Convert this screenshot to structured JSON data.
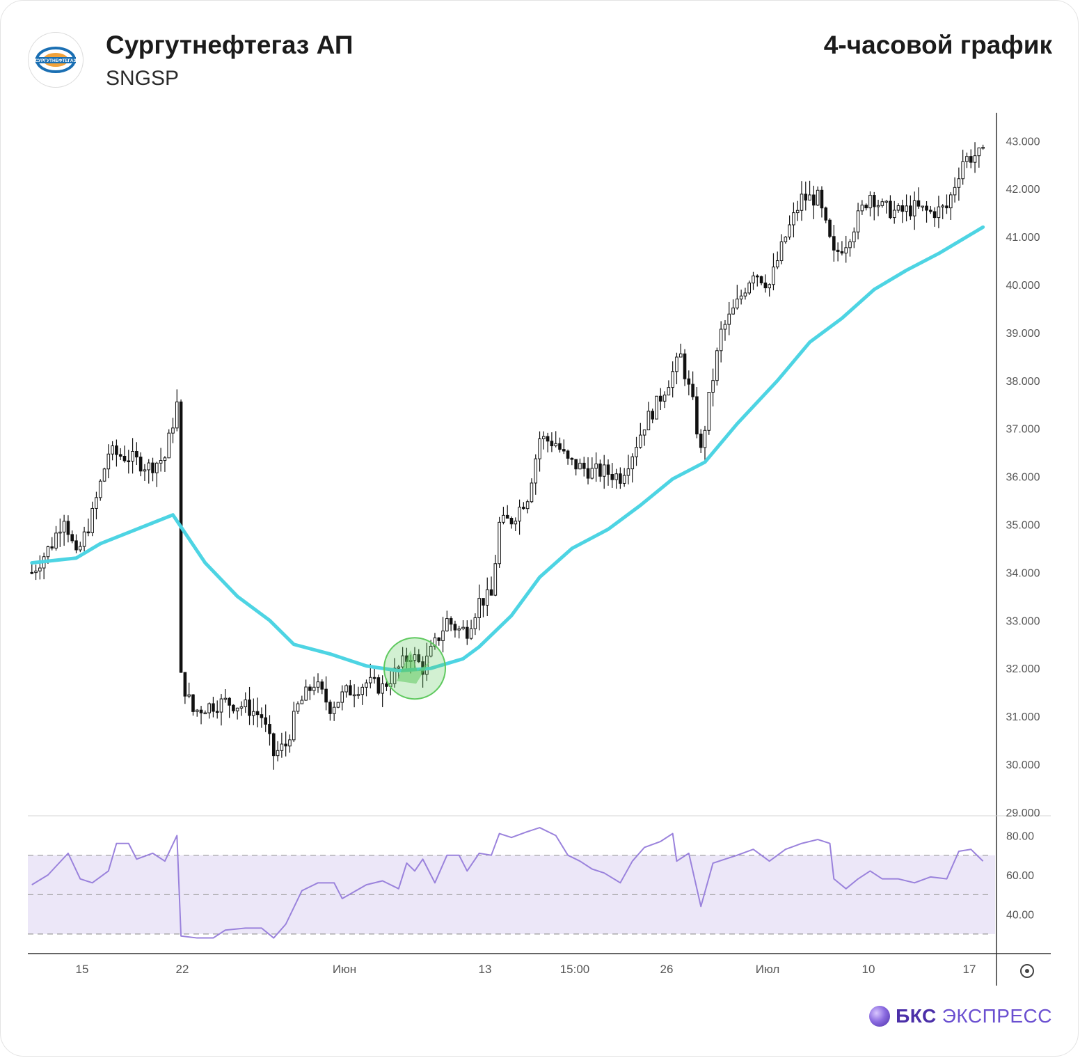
{
  "header": {
    "logo_label": "СУРГУТНЕФТЕГАЗ",
    "title": "Сургутнефтегаз АП",
    "ticker": "SNGSP",
    "timeframe": "4-часовой график"
  },
  "brand": {
    "name_bold": "БКС",
    "name_regular": "ЭКСПРЕСС"
  },
  "colors": {
    "ma_line": "#4dd4e3",
    "rsi_line": "#9a82dc",
    "rsi_band": "#ece7f8",
    "candle": "#111111",
    "signal_circle": "#5fc95f",
    "brand": "#4b2fa8"
  },
  "chart_data": [
    {
      "type": "candlestick",
      "title": "",
      "y_axis_ticks": [
        "29.000",
        "30.000",
        "31.000",
        "32.000",
        "33.000",
        "34.000",
        "35.000",
        "36.000",
        "37.000",
        "38.000",
        "39.000",
        "40.000",
        "41.000",
        "42.000",
        "43.000"
      ],
      "x_axis_ticks": [
        "15",
        "22",
        "Июн",
        "13",
        "15:00",
        "26",
        "Июл",
        "10",
        "17"
      ],
      "ylim": [
        29,
        43.5
      ],
      "price_path": [
        {
          "x": 1,
          "y": 34.0
        },
        {
          "x": 6,
          "y": 34.6
        },
        {
          "x": 9,
          "y": 35.2
        },
        {
          "x": 12,
          "y": 34.3
        },
        {
          "x": 16,
          "y": 35.2
        },
        {
          "x": 20,
          "y": 36.5
        },
        {
          "x": 25,
          "y": 36.4
        },
        {
          "x": 30,
          "y": 36.2
        },
        {
          "x": 34,
          "y": 36.4
        },
        {
          "x": 37,
          "y": 37.5
        },
        {
          "x": 38,
          "y": 31.8
        },
        {
          "x": 41,
          "y": 31.1
        },
        {
          "x": 44,
          "y": 31.2
        },
        {
          "x": 49,
          "y": 31.3
        },
        {
          "x": 54,
          "y": 31.2
        },
        {
          "x": 58,
          "y": 31.0
        },
        {
          "x": 61,
          "y": 30.2
        },
        {
          "x": 64,
          "y": 30.4
        },
        {
          "x": 67,
          "y": 31.2
        },
        {
          "x": 71,
          "y": 31.7
        },
        {
          "x": 75,
          "y": 31.2
        },
        {
          "x": 79,
          "y": 31.5
        },
        {
          "x": 84,
          "y": 31.7
        },
        {
          "x": 88,
          "y": 31.6
        },
        {
          "x": 92,
          "y": 32.0
        },
        {
          "x": 95,
          "y": 32.3
        },
        {
          "x": 98,
          "y": 32.0
        },
        {
          "x": 101,
          "y": 32.5
        },
        {
          "x": 104,
          "y": 33.0
        },
        {
          "x": 107,
          "y": 32.8
        },
        {
          "x": 109,
          "y": 32.8
        },
        {
          "x": 112,
          "y": 33.4
        },
        {
          "x": 115,
          "y": 33.5
        },
        {
          "x": 117,
          "y": 35.0
        },
        {
          "x": 120,
          "y": 35.1
        },
        {
          "x": 124,
          "y": 35.6
        },
        {
          "x": 127,
          "y": 36.8
        },
        {
          "x": 131,
          "y": 36.7
        },
        {
          "x": 134,
          "y": 36.3
        },
        {
          "x": 137,
          "y": 36.2
        },
        {
          "x": 140,
          "y": 36.1
        },
        {
          "x": 143,
          "y": 36.1
        },
        {
          "x": 147,
          "y": 36.0
        },
        {
          "x": 150,
          "y": 36.5
        },
        {
          "x": 153,
          "y": 37.1
        },
        {
          "x": 156,
          "y": 37.5
        },
        {
          "x": 159,
          "y": 38.0
        },
        {
          "x": 162,
          "y": 38.5
        },
        {
          "x": 165,
          "y": 37.5
        },
        {
          "x": 167,
          "y": 36.5
        },
        {
          "x": 169,
          "y": 37.6
        },
        {
          "x": 172,
          "y": 39.0
        },
        {
          "x": 176,
          "y": 39.6
        },
        {
          "x": 180,
          "y": 40.3
        },
        {
          "x": 184,
          "y": 40.0
        },
        {
          "x": 188,
          "y": 41.0
        },
        {
          "x": 192,
          "y": 41.8
        },
        {
          "x": 196,
          "y": 41.8
        },
        {
          "x": 200,
          "y": 40.6
        },
        {
          "x": 203,
          "y": 40.9
        },
        {
          "x": 206,
          "y": 41.4
        },
        {
          "x": 209,
          "y": 41.9
        },
        {
          "x": 212,
          "y": 41.6
        },
        {
          "x": 216,
          "y": 41.5
        },
        {
          "x": 220,
          "y": 41.6
        },
        {
          "x": 224,
          "y": 41.5
        },
        {
          "x": 228,
          "y": 41.6
        },
        {
          "x": 232,
          "y": 42.6
        },
        {
          "x": 235,
          "y": 42.7
        },
        {
          "x": 237,
          "y": 42.7
        }
      ],
      "moving_average": [
        {
          "x": 1,
          "y": 34.2
        },
        {
          "x": 12,
          "y": 34.3
        },
        {
          "x": 18,
          "y": 34.6
        },
        {
          "x": 30,
          "y": 35.0
        },
        {
          "x": 36,
          "y": 35.2
        },
        {
          "x": 44,
          "y": 34.2
        },
        {
          "x": 52,
          "y": 33.5
        },
        {
          "x": 60,
          "y": 33.0
        },
        {
          "x": 66,
          "y": 32.5
        },
        {
          "x": 75,
          "y": 32.3
        },
        {
          "x": 84,
          "y": 32.05
        },
        {
          "x": 92,
          "y": 31.95
        },
        {
          "x": 100,
          "y": 32.0
        },
        {
          "x": 108,
          "y": 32.2
        },
        {
          "x": 112,
          "y": 32.45
        },
        {
          "x": 120,
          "y": 33.1
        },
        {
          "x": 127,
          "y": 33.9
        },
        {
          "x": 135,
          "y": 34.5
        },
        {
          "x": 144,
          "y": 34.9
        },
        {
          "x": 152,
          "y": 35.4
        },
        {
          "x": 160,
          "y": 35.95
        },
        {
          "x": 168,
          "y": 36.3
        },
        {
          "x": 176,
          "y": 37.1
        },
        {
          "x": 186,
          "y": 38.0
        },
        {
          "x": 194,
          "y": 38.8
        },
        {
          "x": 202,
          "y": 39.3
        },
        {
          "x": 210,
          "y": 39.9
        },
        {
          "x": 218,
          "y": 40.3
        },
        {
          "x": 226,
          "y": 40.65
        },
        {
          "x": 232,
          "y": 40.95
        },
        {
          "x": 237,
          "y": 41.2
        }
      ],
      "signal_marker": {
        "x": 96,
        "y": 32.0
      }
    },
    {
      "type": "line",
      "title": "",
      "y_axis_ticks": [
        "40.00",
        "60.00",
        "80.00"
      ],
      "ylim": [
        25,
        85
      ],
      "band": [
        30,
        70
      ],
      "levels": [
        30,
        50,
        70
      ],
      "values": [
        {
          "x": 1,
          "y": 55
        },
        {
          "x": 5,
          "y": 60
        },
        {
          "x": 10,
          "y": 71
        },
        {
          "x": 13,
          "y": 58
        },
        {
          "x": 16,
          "y": 56
        },
        {
          "x": 20,
          "y": 62
        },
        {
          "x": 22,
          "y": 76
        },
        {
          "x": 25,
          "y": 76
        },
        {
          "x": 27,
          "y": 68
        },
        {
          "x": 31,
          "y": 71
        },
        {
          "x": 34,
          "y": 67
        },
        {
          "x": 37,
          "y": 80
        },
        {
          "x": 38,
          "y": 29
        },
        {
          "x": 42,
          "y": 28
        },
        {
          "x": 46,
          "y": 28
        },
        {
          "x": 49,
          "y": 32
        },
        {
          "x": 54,
          "y": 33
        },
        {
          "x": 58,
          "y": 33
        },
        {
          "x": 61,
          "y": 28
        },
        {
          "x": 64,
          "y": 35
        },
        {
          "x": 68,
          "y": 52
        },
        {
          "x": 72,
          "y": 56
        },
        {
          "x": 76,
          "y": 56
        },
        {
          "x": 78,
          "y": 48
        },
        {
          "x": 84,
          "y": 55
        },
        {
          "x": 88,
          "y": 57
        },
        {
          "x": 92,
          "y": 53
        },
        {
          "x": 94,
          "y": 66
        },
        {
          "x": 96,
          "y": 62
        },
        {
          "x": 98,
          "y": 68
        },
        {
          "x": 101,
          "y": 56
        },
        {
          "x": 104,
          "y": 70
        },
        {
          "x": 107,
          "y": 70
        },
        {
          "x": 109,
          "y": 62
        },
        {
          "x": 112,
          "y": 71
        },
        {
          "x": 115,
          "y": 70
        },
        {
          "x": 117,
          "y": 81
        },
        {
          "x": 120,
          "y": 79
        },
        {
          "x": 124,
          "y": 82
        },
        {
          "x": 127,
          "y": 84
        },
        {
          "x": 131,
          "y": 80
        },
        {
          "x": 134,
          "y": 70
        },
        {
          "x": 137,
          "y": 67
        },
        {
          "x": 140,
          "y": 63
        },
        {
          "x": 143,
          "y": 61
        },
        {
          "x": 147,
          "y": 56
        },
        {
          "x": 150,
          "y": 67
        },
        {
          "x": 153,
          "y": 74
        },
        {
          "x": 157,
          "y": 77
        },
        {
          "x": 160,
          "y": 81
        },
        {
          "x": 161,
          "y": 67
        },
        {
          "x": 164,
          "y": 71
        },
        {
          "x": 167,
          "y": 44
        },
        {
          "x": 170,
          "y": 66
        },
        {
          "x": 173,
          "y": 68
        },
        {
          "x": 176,
          "y": 70
        },
        {
          "x": 180,
          "y": 73
        },
        {
          "x": 184,
          "y": 67
        },
        {
          "x": 188,
          "y": 73
        },
        {
          "x": 192,
          "y": 76
        },
        {
          "x": 196,
          "y": 78
        },
        {
          "x": 199,
          "y": 76
        },
        {
          "x": 200,
          "y": 58
        },
        {
          "x": 203,
          "y": 53
        },
        {
          "x": 206,
          "y": 58
        },
        {
          "x": 209,
          "y": 62
        },
        {
          "x": 212,
          "y": 58
        },
        {
          "x": 216,
          "y": 58
        },
        {
          "x": 220,
          "y": 56
        },
        {
          "x": 224,
          "y": 59
        },
        {
          "x": 228,
          "y": 58
        },
        {
          "x": 231,
          "y": 72
        },
        {
          "x": 234,
          "y": 73
        },
        {
          "x": 237,
          "y": 67
        }
      ]
    }
  ]
}
